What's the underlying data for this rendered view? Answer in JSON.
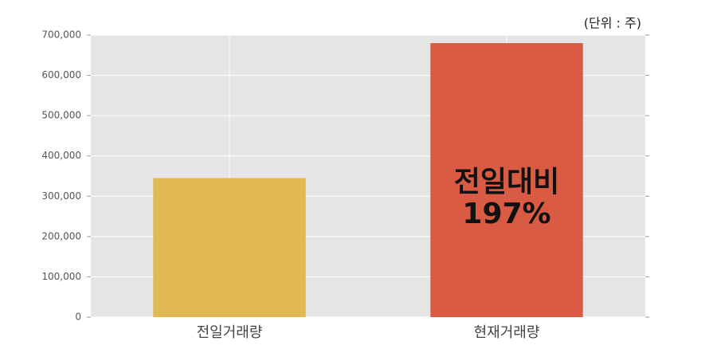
{
  "chart_data": {
    "type": "bar",
    "unit_note": "(단위 : 주)",
    "categories": [
      "전일거래량",
      "현재거래량"
    ],
    "values": [
      345000,
      680000
    ],
    "colors": [
      "#e0b854",
      "#d95b43"
    ],
    "ylim": [
      0,
      700000
    ],
    "yticks": [
      0,
      {
        "value": 100000,
        "label": "100,000"
      },
      {
        "value": 200000,
        "label": "200,000"
      },
      {
        "value": 300000,
        "label": "300,000"
      },
      {
        "value": 400000,
        "label": "400,000"
      },
      {
        "value": 500000,
        "label": "500,000"
      },
      {
        "value": 600000,
        "label": "600,000"
      },
      {
        "value": 700000,
        "label": "700,000"
      }
    ],
    "grid": true,
    "annotation": [
      "전일대비",
      "197%"
    ]
  }
}
